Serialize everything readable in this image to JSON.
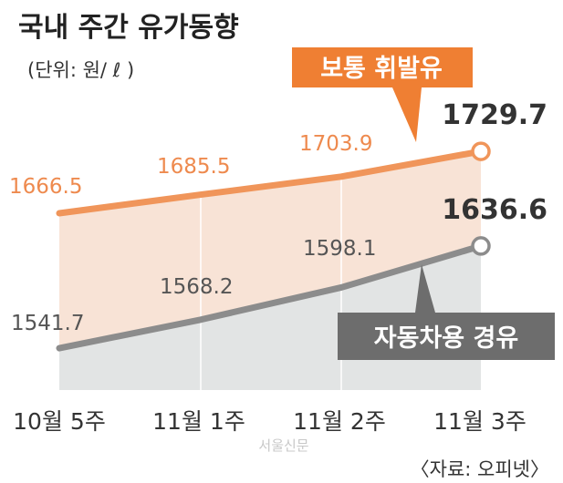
{
  "chart_data": {
    "type": "line",
    "title": "국내 주간 유가동향",
    "unit": "(단위: 원/ ℓ )",
    "categories": [
      "10월 5주",
      "11월 1주",
      "11월 2주",
      "11월 3주"
    ],
    "series": [
      {
        "name": "보통 휘발유",
        "values": [
          1666.5,
          1685.5,
          1703.9,
          1729.7
        ],
        "labels": [
          "1666.5",
          "1685.5",
          "1703.9",
          "1729.7"
        ],
        "color": "#f0955a"
      },
      {
        "name": "자동차용 경유",
        "values": [
          1541.7,
          1568.2,
          1598.1,
          1636.6
        ],
        "labels": [
          "1541.7",
          "1568.2",
          "1598.1",
          "1636.6"
        ],
        "color": "#8c8c8c"
      }
    ],
    "grid": true,
    "source": "〈자료: 오피넷〉"
  },
  "watermark": "서울신문",
  "colors": {
    "gasoline_line": "#f0955a",
    "gasoline_fill": "#f8e3d6",
    "gasoline_label": "#ee8a4e",
    "gasoline_callout": "#ef7f33",
    "diesel_line": "#8c8c8c",
    "diesel_fill": "#e2e4e4",
    "diesel_label": "#555555",
    "diesel_callout": "#6d6d6d"
  }
}
